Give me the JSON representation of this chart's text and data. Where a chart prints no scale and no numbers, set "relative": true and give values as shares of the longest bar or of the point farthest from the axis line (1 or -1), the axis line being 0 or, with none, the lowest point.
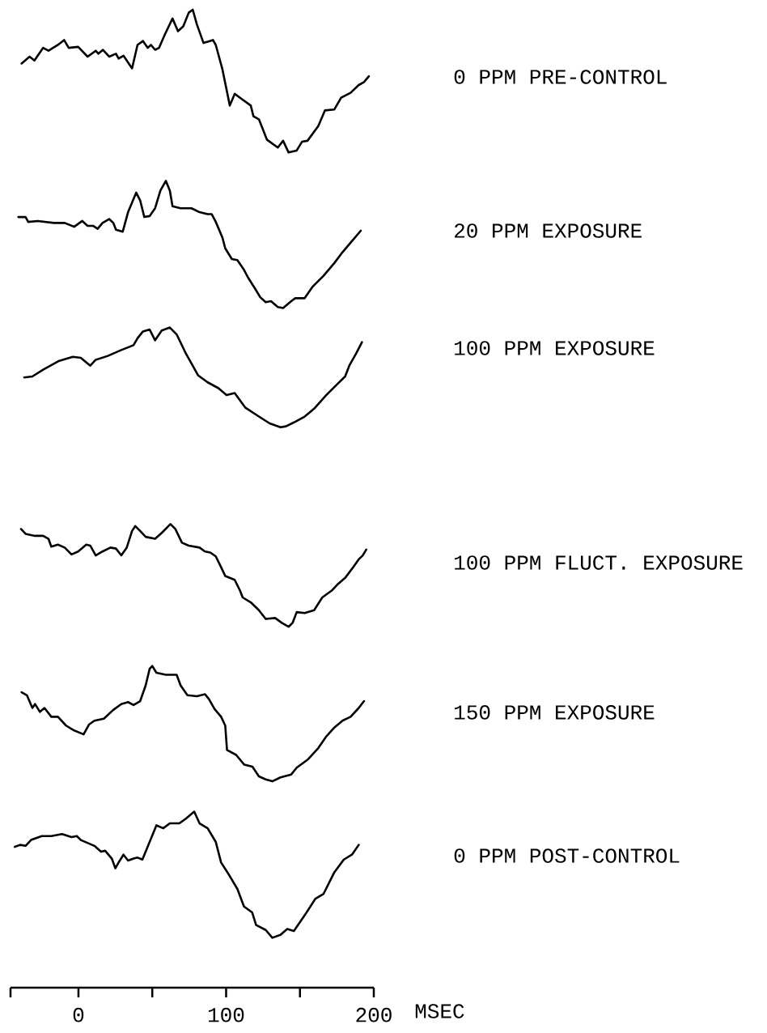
{
  "chart_data": {
    "type": "line",
    "relative": true,
    "xlim": [
      -46,
      200
    ],
    "tick_labels": "x",
    "xlabel": "MSEC",
    "xticks": [
      {
        "value": -46,
        "label": null
      },
      0,
      {
        "value": 50,
        "label": null
      },
      100,
      {
        "value": 150,
        "label": null
      },
      200
    ],
    "series": [
      {
        "name": "0 PPM PRE-CONTROL",
        "color": "#000000",
        "x": [
          -38.5,
          -33.1,
          -29.8,
          -23.9,
          -20.3,
          -13.9,
          -9.7,
          -6.6,
          -0.2,
          6.2,
          11.7,
          13.5,
          16.6,
          20.8,
          25.4,
          27.2,
          30.5,
          36.3,
          40.0,
          43.7,
          46.9,
          49.1,
          51.9,
          54.6,
          58.6,
          63.7,
          67.4,
          71.0,
          74.7,
          77.4,
          80.2,
          84.7,
          91.1,
          93.0,
          97.5,
          102.5,
          105.8,
          109.4,
          116.7,
          118.5,
          122.2,
          127.7,
          135.0,
          138.6,
          142.3,
          147.8,
          151.4,
          155.1,
          162.4,
          166.9,
          173.3,
          177.9,
          184.3,
          189.8,
          193.4,
          196.7
        ],
        "values": [
          0.945,
          0.952,
          0.948,
          0.961,
          0.958,
          0.964,
          0.969,
          0.961,
          0.962,
          0.952,
          0.958,
          0.955,
          0.959,
          0.952,
          0.955,
          0.95,
          0.953,
          0.94,
          0.964,
          0.968,
          0.961,
          0.964,
          0.959,
          0.961,
          0.975,
          0.991,
          0.978,
          0.983,
          0.997,
          1.0,
          0.985,
          0.966,
          0.969,
          0.964,
          0.939,
          0.902,
          0.914,
          0.91,
          0.902,
          0.891,
          0.888,
          0.867,
          0.859,
          0.866,
          0.854,
          0.856,
          0.865,
          0.866,
          0.881,
          0.897,
          0.898,
          0.91,
          0.915,
          0.923,
          0.926,
          0.932
        ]
      },
      {
        "name": "20 PPM EXPOSURE",
        "color": "#000000",
        "x": [
          -40.7,
          -35.8,
          -34.0,
          -27.6,
          -22.1,
          -16.6,
          -9.3,
          -2.9,
          2.6,
          6.2,
          9.9,
          13.0,
          16.3,
          20.8,
          23.6,
          25.4,
          30.0,
          33.6,
          39.1,
          41.8,
          44.6,
          48.2,
          51.9,
          55.5,
          59.2,
          61.9,
          63.7,
          69.2,
          76.5,
          82.0,
          87.5,
          90.2,
          93.0,
          97.5,
          99.4,
          103.9,
          107.6,
          112.1,
          114.9,
          119.5,
          123.1,
          126.8,
          130.4,
          135.0,
          138.6,
          144.1,
          146.8,
          153.2,
          158.7,
          166.0,
          173.3,
          178.8,
          186.1,
          191.2
        ],
        "values": [
          0.788,
          0.788,
          0.783,
          0.784,
          0.783,
          0.782,
          0.782,
          0.778,
          0.784,
          0.779,
          0.779,
          0.776,
          0.782,
          0.786,
          0.782,
          0.775,
          0.773,
          0.793,
          0.813,
          0.805,
          0.788,
          0.789,
          0.797,
          0.815,
          0.825,
          0.815,
          0.799,
          0.797,
          0.797,
          0.793,
          0.791,
          0.791,
          0.783,
          0.767,
          0.756,
          0.745,
          0.744,
          0.734,
          0.726,
          0.715,
          0.706,
          0.701,
          0.702,
          0.696,
          0.695,
          0.702,
          0.705,
          0.705,
          0.717,
          0.728,
          0.741,
          0.752,
          0.765,
          0.774
        ]
      },
      {
        "name": "100 PPM EXPOSURE",
        "color": "#000000",
        "x": [
          -36.7,
          -31.2,
          -23.9,
          -13.0,
          -3.8,
          1.6,
          8.0,
          11.7,
          19.9,
          29.0,
          37.3,
          40.0,
          43.7,
          48.2,
          51.9,
          56.4,
          61.9,
          66.5,
          72.9,
          81.1,
          87.5,
          94.8,
          100.3,
          105.8,
          113.1,
          122.2,
          129.5,
          136.8,
          140.5,
          145.9,
          153.2,
          159.6,
          167.9,
          175.2,
          180.6,
          183.4,
          187.9,
          192.0
        ],
        "values": [
          0.624,
          0.625,
          0.632,
          0.641,
          0.645,
          0.644,
          0.636,
          0.642,
          0.646,
          0.652,
          0.657,
          0.664,
          0.671,
          0.673,
          0.662,
          0.672,
          0.675,
          0.668,
          0.648,
          0.626,
          0.619,
          0.613,
          0.606,
          0.608,
          0.593,
          0.584,
          0.577,
          0.573,
          0.574,
          0.578,
          0.584,
          0.592,
          0.606,
          0.617,
          0.625,
          0.636,
          0.648,
          0.66
        ]
      },
      {
        "name": "100 PPM FLUCT. EXPOSURE",
        "color": "#000000",
        "x": [
          -38.9,
          -35.8,
          -29.4,
          -23.9,
          -20.3,
          -18.4,
          -13.9,
          -9.3,
          -4.7,
          -0.2,
          5.3,
          8.0,
          11.7,
          16.3,
          21.7,
          25.4,
          29.0,
          32.7,
          36.3,
          38.5,
          41.8,
          45.5,
          51.9,
          56.4,
          62.3,
          65.6,
          70.1,
          74.7,
          82.0,
          85.7,
          89.3,
          93.0,
          96.6,
          99.4,
          105.8,
          109.4,
          111.2,
          116.7,
          122.2,
          126.8,
          133.2,
          137.7,
          142.3,
          145.0,
          147.8,
          153.2,
          159.6,
          165.1,
          171.5,
          175.2,
          180.6,
          186.1,
          189.8,
          192.5,
          194.9
        ],
        "values": [
          0.469,
          0.464,
          0.462,
          0.462,
          0.459,
          0.451,
          0.453,
          0.45,
          0.443,
          0.446,
          0.453,
          0.452,
          0.442,
          0.446,
          0.45,
          0.449,
          0.442,
          0.45,
          0.467,
          0.472,
          0.467,
          0.461,
          0.459,
          0.465,
          0.474,
          0.469,
          0.455,
          0.452,
          0.45,
          0.446,
          0.445,
          0.441,
          0.43,
          0.421,
          0.417,
          0.406,
          0.399,
          0.394,
          0.386,
          0.377,
          0.378,
          0.373,
          0.369,
          0.373,
          0.384,
          0.383,
          0.386,
          0.399,
          0.406,
          0.412,
          0.419,
          0.43,
          0.438,
          0.442,
          0.448
        ]
      },
      {
        "name": "150 PPM EXPOSURE",
        "color": "#000000",
        "x": [
          -38.5,
          -34.9,
          -31.2,
          -29.4,
          -26.1,
          -23.0,
          -18.4,
          -13.9,
          -8.4,
          -2.9,
          3.5,
          7.1,
          10.8,
          17.2,
          23.6,
          29.0,
          33.6,
          37.3,
          41.8,
          45.5,
          48.2,
          50.0,
          52.8,
          59.2,
          66.5,
          69.2,
          73.8,
          80.2,
          85.7,
          88.4,
          92.1,
          96.6,
          99.4,
          100.6,
          106.8,
          112.3,
          117.8,
          122.2,
          126.8,
          131.3,
          136.8,
          144.1,
          147.8,
          155.1,
          162.4,
          167.9,
          173.3,
          178.8,
          184.3,
          189.8,
          193.4
        ],
        "values": [
          0.302,
          0.299,
          0.286,
          0.29,
          0.282,
          0.286,
          0.277,
          0.277,
          0.268,
          0.263,
          0.259,
          0.269,
          0.273,
          0.275,
          0.284,
          0.29,
          0.292,
          0.289,
          0.293,
          0.309,
          0.326,
          0.329,
          0.322,
          0.32,
          0.32,
          0.309,
          0.299,
          0.298,
          0.3,
          0.295,
          0.285,
          0.277,
          0.268,
          0.243,
          0.238,
          0.228,
          0.226,
          0.216,
          0.213,
          0.211,
          0.215,
          0.218,
          0.225,
          0.233,
          0.245,
          0.257,
          0.266,
          0.273,
          0.277,
          0.286,
          0.293
        ]
      },
      {
        "name": "0 PPM POST-CONTROL",
        "color": "#000000",
        "x": [
          -43.1,
          -39.5,
          -35.8,
          -32.1,
          -24.8,
          -18.4,
          -11.1,
          -4.7,
          -1.1,
          1.6,
          10.8,
          15.3,
          18.1,
          22.6,
          25.0,
          27.2,
          30.5,
          33.6,
          37.3,
          40.0,
          43.3,
          48.2,
          52.8,
          57.4,
          61.9,
          68.3,
          72.9,
          78.4,
          82.0,
          87.5,
          93.0,
          96.6,
          102.1,
          107.6,
          112.1,
          117.6,
          120.3,
          126.8,
          131.3,
          136.8,
          141.4,
          145.9,
          153.2,
          160.5,
          166.0,
          173.3,
          179.7,
          185.2,
          189.8
        ],
        "values": [
          0.144,
          0.146,
          0.145,
          0.151,
          0.155,
          0.155,
          0.157,
          0.154,
          0.155,
          0.151,
          0.145,
          0.139,
          0.14,
          0.132,
          0.122,
          0.128,
          0.136,
          0.13,
          0.132,
          0.133,
          0.131,
          0.149,
          0.166,
          0.163,
          0.168,
          0.168,
          0.173,
          0.18,
          0.168,
          0.163,
          0.149,
          0.128,
          0.115,
          0.101,
          0.083,
          0.077,
          0.064,
          0.059,
          0.051,
          0.054,
          0.06,
          0.058,
          0.074,
          0.091,
          0.096,
          0.118,
          0.131,
          0.136,
          0.146
        ]
      }
    ]
  }
}
